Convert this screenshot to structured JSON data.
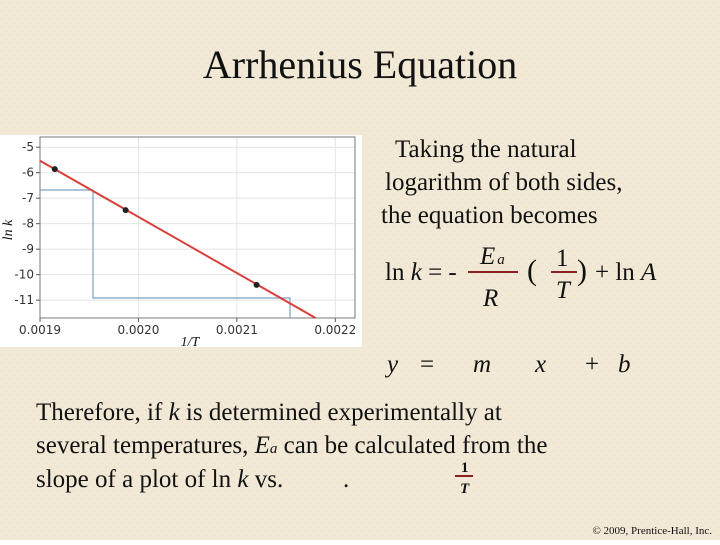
{
  "title": "Arrhenius Equation",
  "chart": {
    "type": "line",
    "xlabel": "1/T",
    "ylabel": "ln k",
    "xlim": [
      0.0019,
      0.00222
    ],
    "ylim": [
      -11.7,
      -4.6
    ],
    "xticks": [
      0.0019,
      {
        "value": 0.002,
        "label": "0.0020"
      },
      0.0021,
      0.0022
    ],
    "yticks": [
      -5,
      -6,
      -7,
      -8,
      -9,
      -10,
      -11
    ],
    "grid": true,
    "series": [
      {
        "x": [
          0.0019,
          0.00218
        ],
        "values": [
          -5.53,
          -11.7
        ],
        "color": "#d9403a",
        "markers": false
      },
      {
        "x": [
          0.001915,
          0.001987,
          0.00212
        ],
        "values": [
          -5.86,
          -7.47,
          -10.4
        ],
        "color": "#222222",
        "markers": true
      }
    ]
  },
  "intro": [
    "Taking the natural",
    "logarithm of both sides,",
    "the equation becomes"
  ],
  "equation": {
    "lhs": "ln ",
    "k": "k",
    "eq": " = -",
    "numerator": "E",
    "numerator_sub": "a",
    "denominator": "R",
    "paren_open": "(",
    "one": "1",
    "T": "T",
    "paren_close": ")",
    "tail": "+ ln ",
    "A": "A"
  },
  "linear": [
    "y",
    "=",
    "m",
    "x",
    "+",
    "b"
  ],
  "conclusion": [
    [
      "Therefore, if ",
      "k",
      " is determined experimentally at"
    ],
    [
      "several temperatures, ",
      "E",
      "a",
      " can be calculated from the"
    ],
    [
      "slope of a plot of ln ",
      "k",
      " vs. ",
      "1",
      "T",
      "."
    ]
  ],
  "footer": "© 2009, Prentice-Hall, Inc."
}
